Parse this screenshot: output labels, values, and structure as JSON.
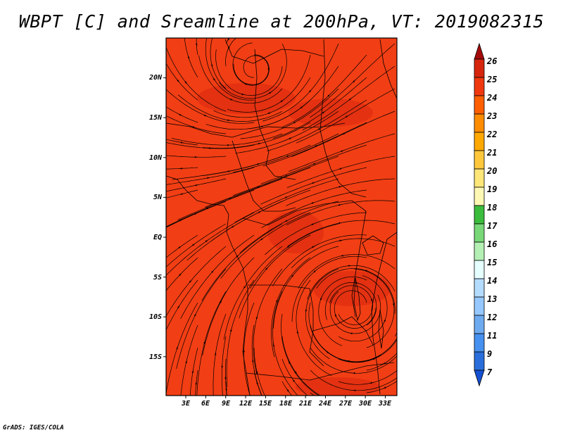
{
  "title": "WBPT [C] and Sreamline at 200hPa, VT: 2019082315",
  "credit": "GrADS: IGES/COLA",
  "map": {
    "lat_labels": [
      "20N",
      "15N",
      "10N",
      "5N",
      "EQ",
      "5S",
      "10S",
      "15S"
    ],
    "lon_labels": [
      "3E",
      "6E",
      "9E",
      "12E",
      "15E",
      "18E",
      "21E",
      "24E",
      "27E",
      "30E",
      "33E"
    ],
    "field_variable": "wet-bulb potential temperature",
    "field_range_c": [
      23,
      25
    ],
    "background_color": "#f23e14",
    "warm_patch_color": "#de2c10"
  },
  "colorbar": {
    "labels": [
      "26",
      "25",
      "24",
      "23",
      "22",
      "21",
      "20",
      "19",
      "18",
      "17",
      "16",
      "15",
      "14",
      "13",
      "12",
      "11",
      "9",
      "7"
    ],
    "colors": [
      "#a50a0a",
      "#d7260e",
      "#f0380e",
      "#ff5f00",
      "#ff8c00",
      "#ffa800",
      "#ffc83c",
      "#ffe678",
      "#fff8b4",
      "#3cbc3c",
      "#78d878",
      "#b4f0b4",
      "#e6ffff",
      "#b4dcff",
      "#96c8ff",
      "#6eaaf0",
      "#4690f0",
      "#2a6edc",
      "#1450d2"
    ]
  }
}
